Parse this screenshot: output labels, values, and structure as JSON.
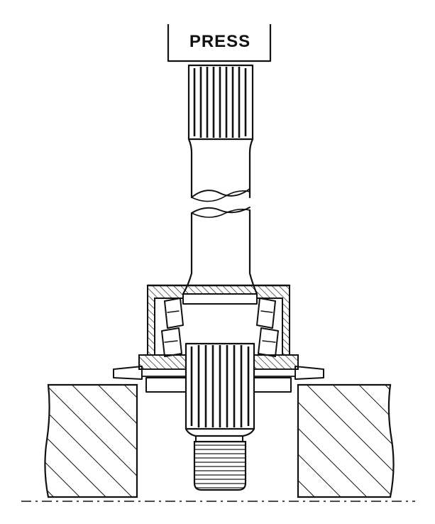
{
  "press": {
    "label": "PRESS"
  },
  "colors": {
    "ink": "#111111",
    "paper": "#ffffff"
  }
}
